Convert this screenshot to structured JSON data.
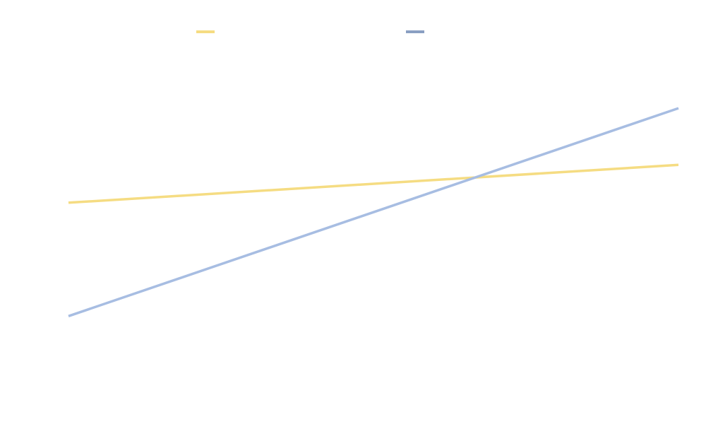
{
  "chart_data": {
    "type": "line",
    "x": [
      0,
      1
    ],
    "series": [
      {
        "color": "#f5dc82",
        "values": [
          0.52,
          0.62
        ]
      },
      {
        "color": "#a7bde2",
        "values": [
          0.22,
          0.77
        ]
      }
    ],
    "legend_colors": [
      "#f5dc82",
      "#8a9fc2"
    ],
    "legend_position": "top",
    "ylim": [
      0,
      1
    ],
    "grid": false
  }
}
